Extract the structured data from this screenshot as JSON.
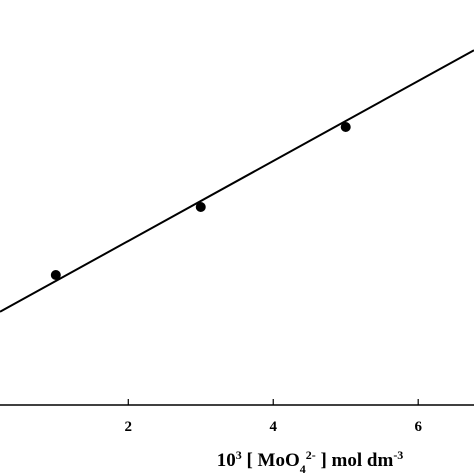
{
  "chart_data": {
    "type": "scatter",
    "x": [
      1,
      3,
      5
    ],
    "values": [
      2.6,
      3.96,
      5.56
    ],
    "color": "#000000",
    "fit": {
      "slope": 0.8,
      "intercept": 1.68
    },
    "xlim": [
      0.23,
      6.77
    ],
    "ylim": [
      0,
      8.1
    ],
    "xticks": [
      2,
      4,
      6
    ],
    "xlabel": [
      {
        "text": "10"
      },
      {
        "sup": "3"
      },
      {
        "text": " [ MoO"
      },
      {
        "sub": "4"
      },
      {
        "sup": "2-"
      },
      {
        "text": " ] mol dm"
      },
      {
        "sup": "-3"
      }
    ]
  }
}
